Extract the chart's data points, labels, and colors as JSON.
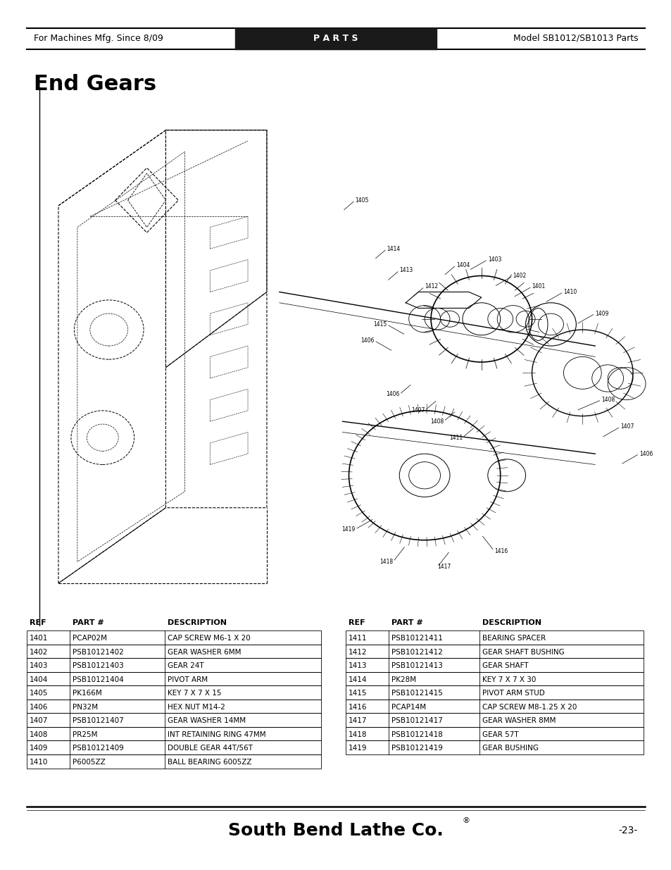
{
  "page_bg": "#ffffff",
  "header": {
    "left_text": "For Machines Mfg. Since 8/09",
    "center_text": "P A R T S",
    "right_text": "Model SB1012/SB1013 Parts",
    "bar_color": "#1a1a1a",
    "text_color_center": "#ffffff",
    "text_color_sides": "#000000",
    "font_size": 9
  },
  "title": "End Gears",
  "title_fontsize": 22,
  "footer_text": "South Bend Lathe Co.",
  "footer_trademark": "®",
  "footer_page": "-23-",
  "table_left": [
    {
      "ref": "1401",
      "part": "PCAP02M",
      "desc": "CAP SCREW M6-1 X 20"
    },
    {
      "ref": "1402",
      "part": "PSB10121402",
      "desc": "GEAR WASHER 6MM"
    },
    {
      "ref": "1403",
      "part": "PSB10121403",
      "desc": "GEAR 24T"
    },
    {
      "ref": "1404",
      "part": "PSB10121404",
      "desc": "PIVOT ARM"
    },
    {
      "ref": "1405",
      "part": "PK166M",
      "desc": "KEY 7 X 7 X 15"
    },
    {
      "ref": "1406",
      "part": "PN32M",
      "desc": "HEX NUT M14-2"
    },
    {
      "ref": "1407",
      "part": "PSB10121407",
      "desc": "GEAR WASHER 14MM"
    },
    {
      "ref": "1408",
      "part": "PR25M",
      "desc": "INT RETAINING RING 47MM"
    },
    {
      "ref": "1409",
      "part": "PSB10121409",
      "desc": "DOUBLE GEAR 44T/56T"
    },
    {
      "ref": "1410",
      "part": "P6005ZZ",
      "desc": "BALL BEARING 6005ZZ"
    }
  ],
  "table_right": [
    {
      "ref": "1411",
      "part": "PSB10121411",
      "desc": "BEARING SPACER"
    },
    {
      "ref": "1412",
      "part": "PSB10121412",
      "desc": "GEAR SHAFT BUSHING"
    },
    {
      "ref": "1413",
      "part": "PSB10121413",
      "desc": "GEAR SHAFT"
    },
    {
      "ref": "1414",
      "part": "PK28M",
      "desc": "KEY 7 X 7 X 30"
    },
    {
      "ref": "1415",
      "part": "PSB10121415",
      "desc": "PIVOT ARM STUD"
    },
    {
      "ref": "1416",
      "part": "PCAP14M",
      "desc": "CAP SCREW M8-1.25 X 20"
    },
    {
      "ref": "1417",
      "part": "PSB10121417",
      "desc": "GEAR WASHER 8MM"
    },
    {
      "ref": "1418",
      "part": "PSB10121418",
      "desc": "GEAR 57T"
    },
    {
      "ref": "1419",
      "part": "PSB10121419",
      "desc": "GEAR BUSHING"
    }
  ],
  "col_headers": [
    "REF",
    "PART #",
    "DESCRIPTION"
  ],
  "table_fontsize": 7.5,
  "header_fontsize": 8
}
